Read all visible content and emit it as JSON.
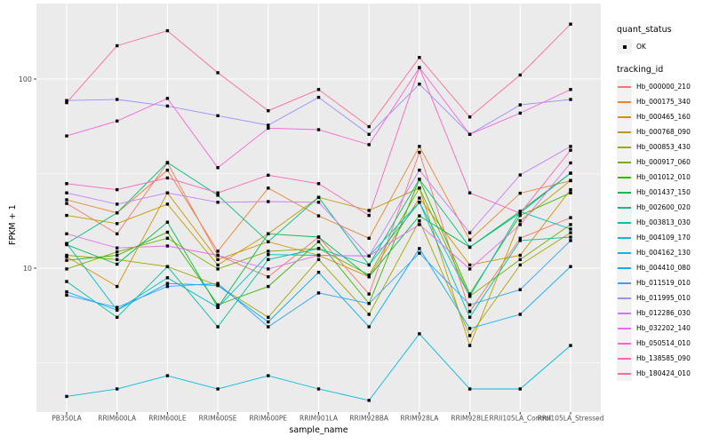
{
  "legend": {
    "quant_title": "quant_status",
    "quant_items": [
      {
        "label": "OK"
      }
    ],
    "tracking_title": "tracking_id"
  },
  "axes": {
    "x_title": "sample_name",
    "y_title": "FPKM + 1"
  },
  "colors": {
    "panel_bg": "#EBEBEB",
    "gridline": "#FFFFFF",
    "marker": "#000000",
    "tick_label": "#4D4D4D",
    "tick_mark": "#333333",
    "legend_key_bg": "#F2F2F2"
  },
  "chart_data": {
    "type": "line",
    "title": "",
    "xlabel": "sample_name",
    "ylabel": "FPKM + 1",
    "y_scale": "log10",
    "y_ticks": [
      100,
      10
    ],
    "y_tick_labels": [
      "100",
      "10"
    ],
    "y_minor_gridlines": [
      31.62,
      3.162
    ],
    "ylim_log": [
      2.0,
      220
    ],
    "grid": "on",
    "legend_position": "right",
    "marker": "black-square",
    "quant_status": "OK",
    "categories": [
      "PB350LA",
      "RRIM600LA",
      "RRIM600LE",
      "RRIM600SE",
      "RRIM600PE",
      "RRIM901LA",
      "RRIM928BA",
      "RRIM928LA",
      "RRIM928LE",
      "RRII105LA_Control",
      "RRII105LA_Stressed"
    ],
    "series": [
      {
        "name": "Hb_000000_210",
        "color": "#F8766D",
        "values": [
          22,
          15.2,
          36,
          11.7,
          9.0,
          14.6,
          7.3,
          41,
          5.9,
          14.4,
          18.5
        ]
      },
      {
        "name": "Hb_000175_340",
        "color": "#EA8331",
        "values": [
          23,
          19.6,
          33,
          12.3,
          26.5,
          18.9,
          14.4,
          44,
          14.1,
          24.9,
          29
        ]
      },
      {
        "name": "Hb_000465_160",
        "color": "#D89000",
        "values": [
          11.5,
          8.0,
          25,
          11.1,
          13.8,
          11.7,
          9.0,
          23.5,
          10.4,
          11.7,
          26
        ]
      },
      {
        "name": "Hb_000768_090",
        "color": "#C09B00",
        "values": [
          19,
          17.2,
          21.8,
          10.4,
          15.2,
          23.7,
          20.2,
          26.5,
          3.9,
          17.8,
          29.1
        ]
      },
      {
        "name": "Hb_000853_430",
        "color": "#A3A500",
        "values": [
          11.7,
          11.1,
          10.2,
          8.1,
          5.5,
          11.1,
          5.7,
          17.8,
          4.4,
          10.4,
          15.4
        ]
      },
      {
        "name": "Hb_000917_060",
        "color": "#7CAE00",
        "values": [
          9.9,
          12.2,
          14.4,
          9.9,
          12.3,
          12.7,
          9.2,
          26.5,
          7.1,
          11.1,
          17
        ]
      },
      {
        "name": "Hb_001012_010",
        "color": "#39B600",
        "values": [
          11,
          11.7,
          15.5,
          6.4,
          8.0,
          13.8,
          6.5,
          29.5,
          7.3,
          19,
          25
        ]
      },
      {
        "name": "Hb_001437_150",
        "color": "#00BB4E",
        "values": [
          13.3,
          10.5,
          17.5,
          6.2,
          15.2,
          14.6,
          9.0,
          18.9,
          12.9,
          20,
          31.8
        ]
      },
      {
        "name": "Hb_002600_020",
        "color": "#00BF7D",
        "values": [
          13.5,
          19.6,
          36.2,
          24.3,
          13.8,
          23.7,
          10.4,
          29.5,
          12.9,
          19.6,
          31.8
        ]
      },
      {
        "name": "Hb_003813_030",
        "color": "#00C1A3",
        "values": [
          8.5,
          5.5,
          10.2,
          4.9,
          11.1,
          12.7,
          10.4,
          22.3,
          5.5,
          14,
          14.6
        ]
      },
      {
        "name": "Hb_004109_170",
        "color": "#00BFC4",
        "values": [
          13.5,
          6.0,
          8.9,
          6.2,
          11.8,
          11.7,
          11.6,
          22.3,
          7.1,
          19.9,
          16.1
        ]
      },
      {
        "name": "Hb_004162_130",
        "color": "#00BAE0",
        "values": [
          2.1,
          2.3,
          2.7,
          2.3,
          2.7,
          2.3,
          2.0,
          4.5,
          2.3,
          2.3,
          3.9
        ]
      },
      {
        "name": "Hb_004410_080",
        "color": "#00B0F6",
        "values": [
          7.5,
          6.0,
          8.3,
          8.1,
          5.2,
          9.5,
          4.9,
          12.7,
          4.8,
          5.7,
          10.2
        ]
      },
      {
        "name": "Hb_011519_010",
        "color": "#35A2FF",
        "values": [
          7.2,
          6.2,
          8.0,
          8.3,
          4.9,
          7.4,
          6.5,
          12.0,
          6.4,
          7.7,
          14.0
        ]
      },
      {
        "name": "Hb_011995_010",
        "color": "#9590FF",
        "values": [
          77,
          78,
          72,
          64,
          57,
          80,
          51,
          94,
          51,
          73,
          78
        ]
      },
      {
        "name": "Hb_012286_030",
        "color": "#C77CFF",
        "values": [
          25,
          21.8,
          25,
          22.3,
          22.5,
          22.3,
          11.6,
          33,
          15.4,
          31.1,
          44
        ]
      },
      {
        "name": "Hb_032202_140",
        "color": "#E76BF3",
        "values": [
          15.2,
          12.8,
          13.1,
          11.7,
          9.9,
          11.7,
          11.6,
          17.0,
          9.9,
          17.0,
          36
        ]
      },
      {
        "name": "Hb_050514_010",
        "color": "#FA62DB",
        "values": [
          50,
          60,
          79,
          34,
          55,
          54,
          45,
          115,
          51,
          66,
          88
        ]
      },
      {
        "name": "Hb_138585_090",
        "color": "#FF62BC",
        "values": [
          28,
          26,
          30,
          25,
          31,
          28,
          19,
          115,
          25,
          19.5,
          42
        ]
      },
      {
        "name": "Hb_180424_010",
        "color": "#FF6A98",
        "values": [
          75,
          150,
          180,
          108,
          68,
          88,
          56,
          130,
          63,
          105,
          195
        ]
      }
    ]
  }
}
